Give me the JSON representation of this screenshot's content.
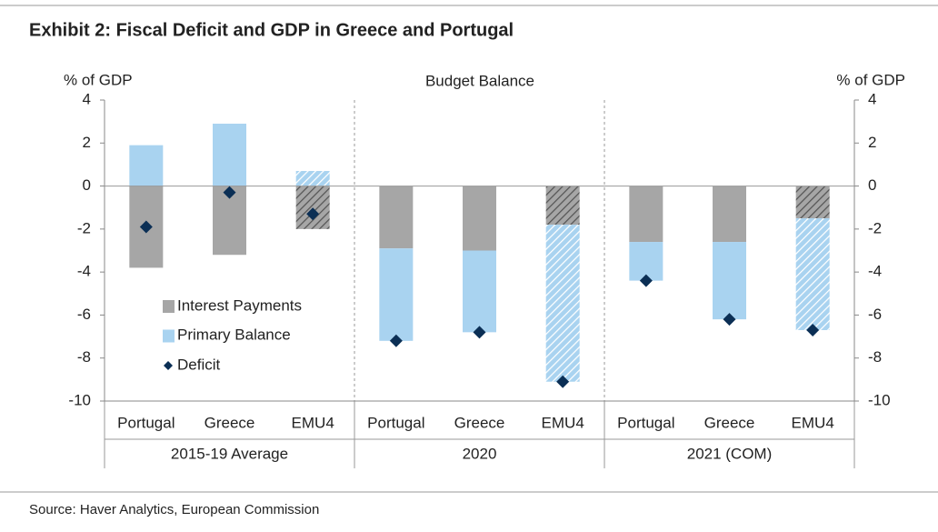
{
  "chart_data": {
    "type": "bar",
    "title": "Exhibit 2: Fiscal Deficit and GDP in Greece and Portugal",
    "subtitle": "Budget Balance",
    "y_label": "% of GDP",
    "y2_label": "% of GDP",
    "source": "Source: Haver Analytics, European Commission",
    "categories": [
      "Portugal",
      "Greece",
      "EMU4",
      "Portugal",
      "Greece",
      "EMU4",
      "Portugal",
      "Greece",
      "EMU4"
    ],
    "groups": [
      "2015-19 Average",
      "2020",
      "2021 (COM)"
    ],
    "hatched": [
      false,
      false,
      true,
      false,
      false,
      true,
      false,
      false,
      true
    ],
    "stacked": true,
    "series": [
      {
        "name": "Interest Payments",
        "color": "#a6a6a6",
        "values": [
          -3.8,
          -3.2,
          -2.0,
          -2.9,
          -3.0,
          -1.8,
          -2.6,
          -2.6,
          -1.5
        ]
      },
      {
        "name": "Primary Balance",
        "color": "#a9d3f0",
        "values": [
          1.9,
          2.9,
          0.7,
          -4.3,
          -3.8,
          -7.3,
          -1.8,
          -3.6,
          -5.2
        ]
      },
      {
        "name": "Deficit",
        "color": "#0b2f55",
        "type": "marker",
        "values": [
          -1.9,
          -0.3,
          -1.3,
          -7.2,
          -6.8,
          -9.1,
          -4.4,
          -6.2,
          -6.7
        ]
      }
    ],
    "ylim": [
      -10,
      4
    ],
    "yticks": [
      -10,
      -8,
      -6,
      -4,
      -2,
      0,
      2,
      4
    ],
    "y2lim": [
      -10,
      4
    ],
    "y2ticks": [
      -10,
      -8,
      -6,
      -4,
      -2,
      0,
      2,
      4
    ],
    "legend": "lower-left"
  }
}
